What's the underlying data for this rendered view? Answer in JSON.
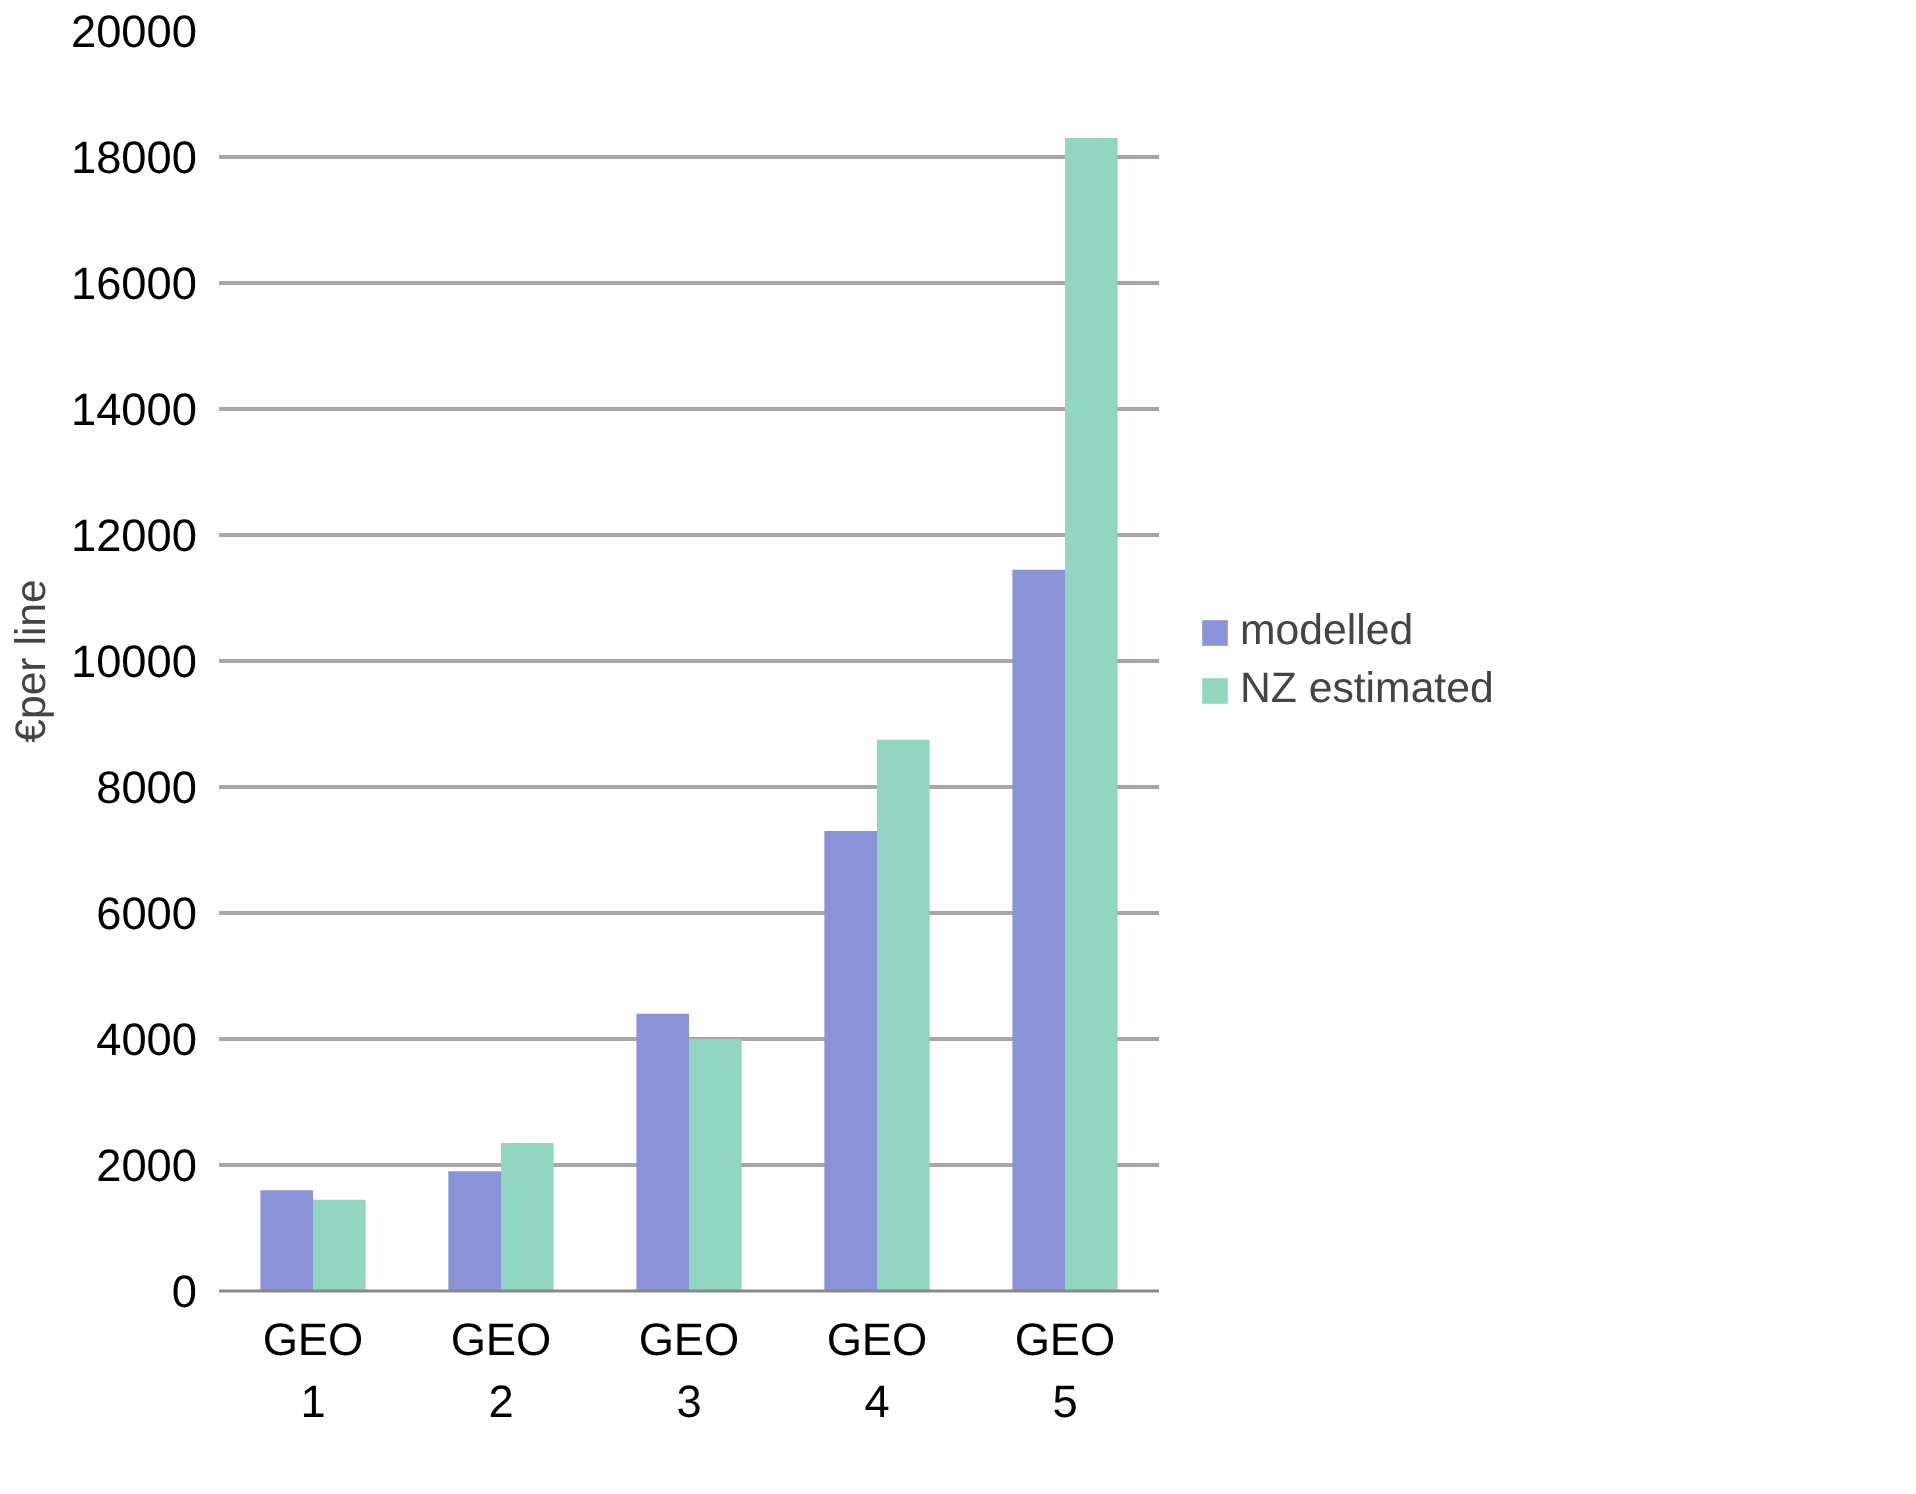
{
  "chart_data": {
    "type": "bar",
    "ylabel": "€per line",
    "categories": [
      "GEO 1",
      "GEO 2",
      "GEO 3",
      "GEO 4",
      "GEO 5"
    ],
    "series": [
      {
        "name": "modelled",
        "color": "#8b93d8",
        "values": [
          1600,
          1900,
          4400,
          7300,
          11450
        ]
      },
      {
        "name": "NZ estimated",
        "color": "#92d5c0",
        "values": [
          1450,
          2350,
          4000,
          8750,
          18300
        ]
      }
    ],
    "ylim": [
      0,
      20000
    ],
    "yticks": [
      0,
      2000,
      4000,
      6000,
      8000,
      10000,
      12000,
      14000,
      16000,
      18000,
      20000
    ],
    "grid": "y",
    "legend": "right"
  }
}
